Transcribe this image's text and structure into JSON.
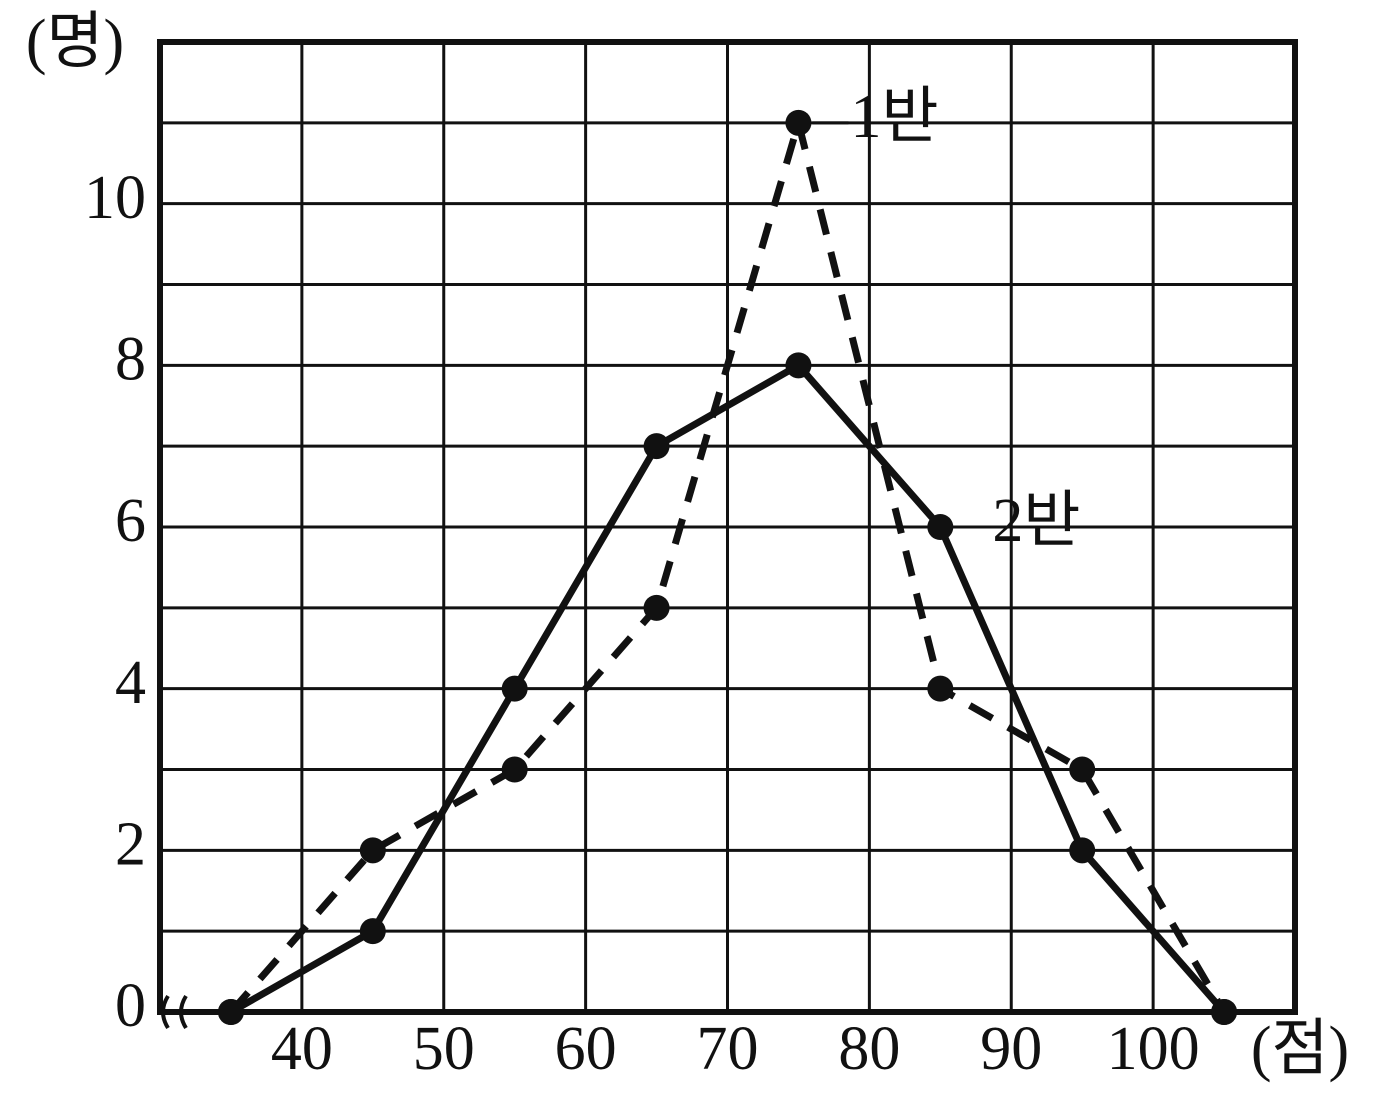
{
  "chart_data": {
    "type": "line",
    "y_label": "(명)",
    "x_label": "(점)",
    "x": [
      35,
      45,
      55,
      65,
      75,
      85,
      95,
      105
    ],
    "series": [
      {
        "name": "1반",
        "color": "#111111",
        "dash": true,
        "values": [
          0,
          2,
          3,
          5,
          11,
          4,
          3,
          0
        ]
      },
      {
        "name": "2반",
        "color": "#111111",
        "dash": false,
        "values": [
          0,
          1,
          4,
          7,
          8,
          6,
          2,
          0
        ]
      }
    ],
    "xlim": [
      30,
      110
    ],
    "xticks": [
      40,
      50,
      60,
      70,
      80,
      90,
      100
    ],
    "ylim": [
      0,
      12
    ],
    "yticks": [
      0,
      2,
      4,
      6,
      8,
      10
    ],
    "yminorticks": [
      1,
      3,
      5,
      7,
      9,
      11
    ],
    "grid": true
  }
}
